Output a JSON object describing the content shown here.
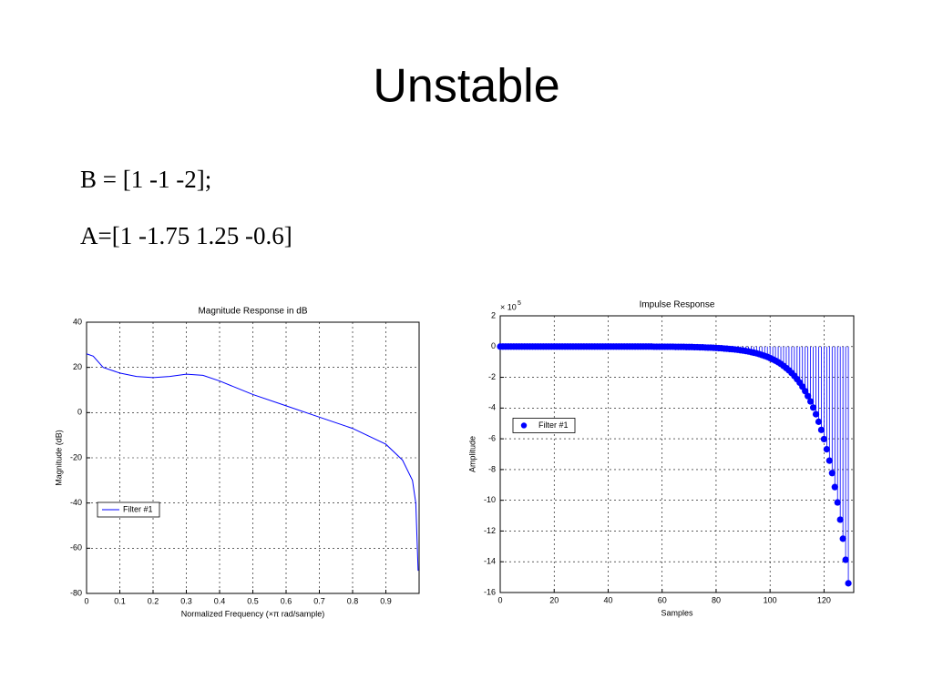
{
  "title": "Unstable",
  "lines": [
    "B = [1 -1 -2];",
    "A=[1 -1.75 1.25 -0.6]"
  ],
  "chart_data": [
    {
      "type": "line",
      "title": "Magnitude Response in dB",
      "xlabel": "Normalized Frequency  (×π rad/sample)",
      "ylabel": "Magnitude (dB)",
      "xlim": [
        0,
        1
      ],
      "xticks": [
        0,
        0.1,
        0.2,
        0.3,
        0.4,
        0.5,
        0.6,
        0.7,
        0.8,
        0.9
      ],
      "ylim": [
        -80,
        40
      ],
      "yticks": [
        -80,
        -60,
        -40,
        -20,
        0,
        20,
        40
      ],
      "grid": true,
      "legend": "southwest",
      "x": [
        0,
        0.02,
        0.05,
        0.1,
        0.15,
        0.2,
        0.25,
        0.3,
        0.35,
        0.4,
        0.5,
        0.6,
        0.7,
        0.8,
        0.9,
        0.95,
        0.98,
        0.99,
        0.997
      ],
      "series": [
        {
          "name": "Filter #1",
          "color": "#0000ff",
          "values": [
            26,
            25,
            20,
            17.5,
            16,
            15.5,
            16,
            17,
            16.5,
            14,
            8,
            3,
            -2,
            -7,
            -14,
            -21,
            -30,
            -40,
            -70
          ]
        }
      ]
    },
    {
      "type": "stem",
      "title": "Impulse Response",
      "xlabel": "Samples",
      "ylabel": "Amplitude",
      "y_multiplier": "× 10",
      "y_exponent": "5",
      "xlim": [
        0,
        131
      ],
      "xticks": [
        0,
        20,
        40,
        60,
        80,
        100,
        120
      ],
      "ylim": [
        -16,
        2
      ],
      "yticks": [
        -16,
        -14,
        -12,
        -10,
        -8,
        -6,
        -4,
        -2,
        0,
        2
      ],
      "grid": true,
      "legend": "west",
      "x": [
        0,
        1,
        2,
        3,
        4,
        5,
        6,
        7,
        8,
        9,
        10,
        11,
        12,
        13,
        14,
        15,
        16,
        17,
        18,
        19,
        20,
        21,
        22,
        23,
        24,
        25,
        26,
        27,
        28,
        29,
        30,
        31,
        32,
        33,
        34,
        35,
        36,
        37,
        38,
        39,
        40,
        41,
        42,
        43,
        44,
        45,
        46,
        47,
        48,
        49,
        50,
        51,
        52,
        53,
        54,
        55,
        56,
        57,
        58,
        59,
        60,
        61,
        62,
        63,
        64,
        65,
        66,
        67,
        68,
        69,
        70,
        71,
        72,
        73,
        74,
        75,
        76,
        77,
        78,
        79,
        80,
        81,
        82,
        83,
        84,
        85,
        86,
        87,
        88,
        89,
        90,
        91,
        92,
        93,
        94,
        95,
        96,
        97,
        98,
        99,
        100,
        101,
        102,
        103,
        104,
        105,
        106,
        107,
        108,
        109,
        110,
        111,
        112,
        113,
        114,
        115,
        116,
        117,
        118,
        119,
        120,
        121,
        122,
        123,
        124,
        125,
        126,
        127,
        128,
        129
      ],
      "series": [
        {
          "name": "Filter #1",
          "color": "#0000ff",
          "values": [
            0,
            0,
            0,
            0,
            0,
            0,
            0,
            0,
            0,
            0,
            0,
            0,
            0,
            0,
            0,
            0,
            0,
            0,
            0,
            0,
            0,
            0,
            0,
            0,
            0,
            0,
            0,
            0,
            0,
            0,
            0,
            0,
            0,
            0,
            0,
            0,
            0,
            0,
            0,
            0,
            0,
            0,
            0,
            0,
            0,
            0,
            0,
            0,
            0,
            0,
            0,
            0,
            0,
            0,
            0,
            0,
            0,
            -0.01,
            -0.01,
            -0.01,
            -0.01,
            -0.01,
            -0.01,
            -0.01,
            -0.01,
            -0.02,
            -0.02,
            -0.02,
            -0.02,
            -0.03,
            -0.03,
            -0.03,
            -0.04,
            -0.04,
            -0.05,
            -0.05,
            -0.06,
            -0.07,
            -0.07,
            -0.08,
            -0.09,
            -0.1,
            -0.11,
            -0.13,
            -0.14,
            -0.16,
            -0.17,
            -0.19,
            -0.21,
            -0.24,
            -0.26,
            -0.29,
            -0.32,
            -0.36,
            -0.4,
            -0.44,
            -0.49,
            -0.55,
            -0.61,
            -0.67,
            -0.75,
            -0.83,
            -0.92,
            -1.02,
            -1.13,
            -1.26,
            -1.4,
            -1.55,
            -1.72,
            -1.91,
            -2.12,
            -2.35,
            -2.61,
            -2.9,
            -3.22,
            -3.57,
            -3.97,
            -4.4,
            -4.89,
            -5.42,
            -6.02,
            -6.68,
            -7.42,
            -8.23,
            -9.14,
            -10.14,
            -11.26,
            -12.5,
            -13.87,
            -15.4
          ]
        }
      ]
    }
  ]
}
